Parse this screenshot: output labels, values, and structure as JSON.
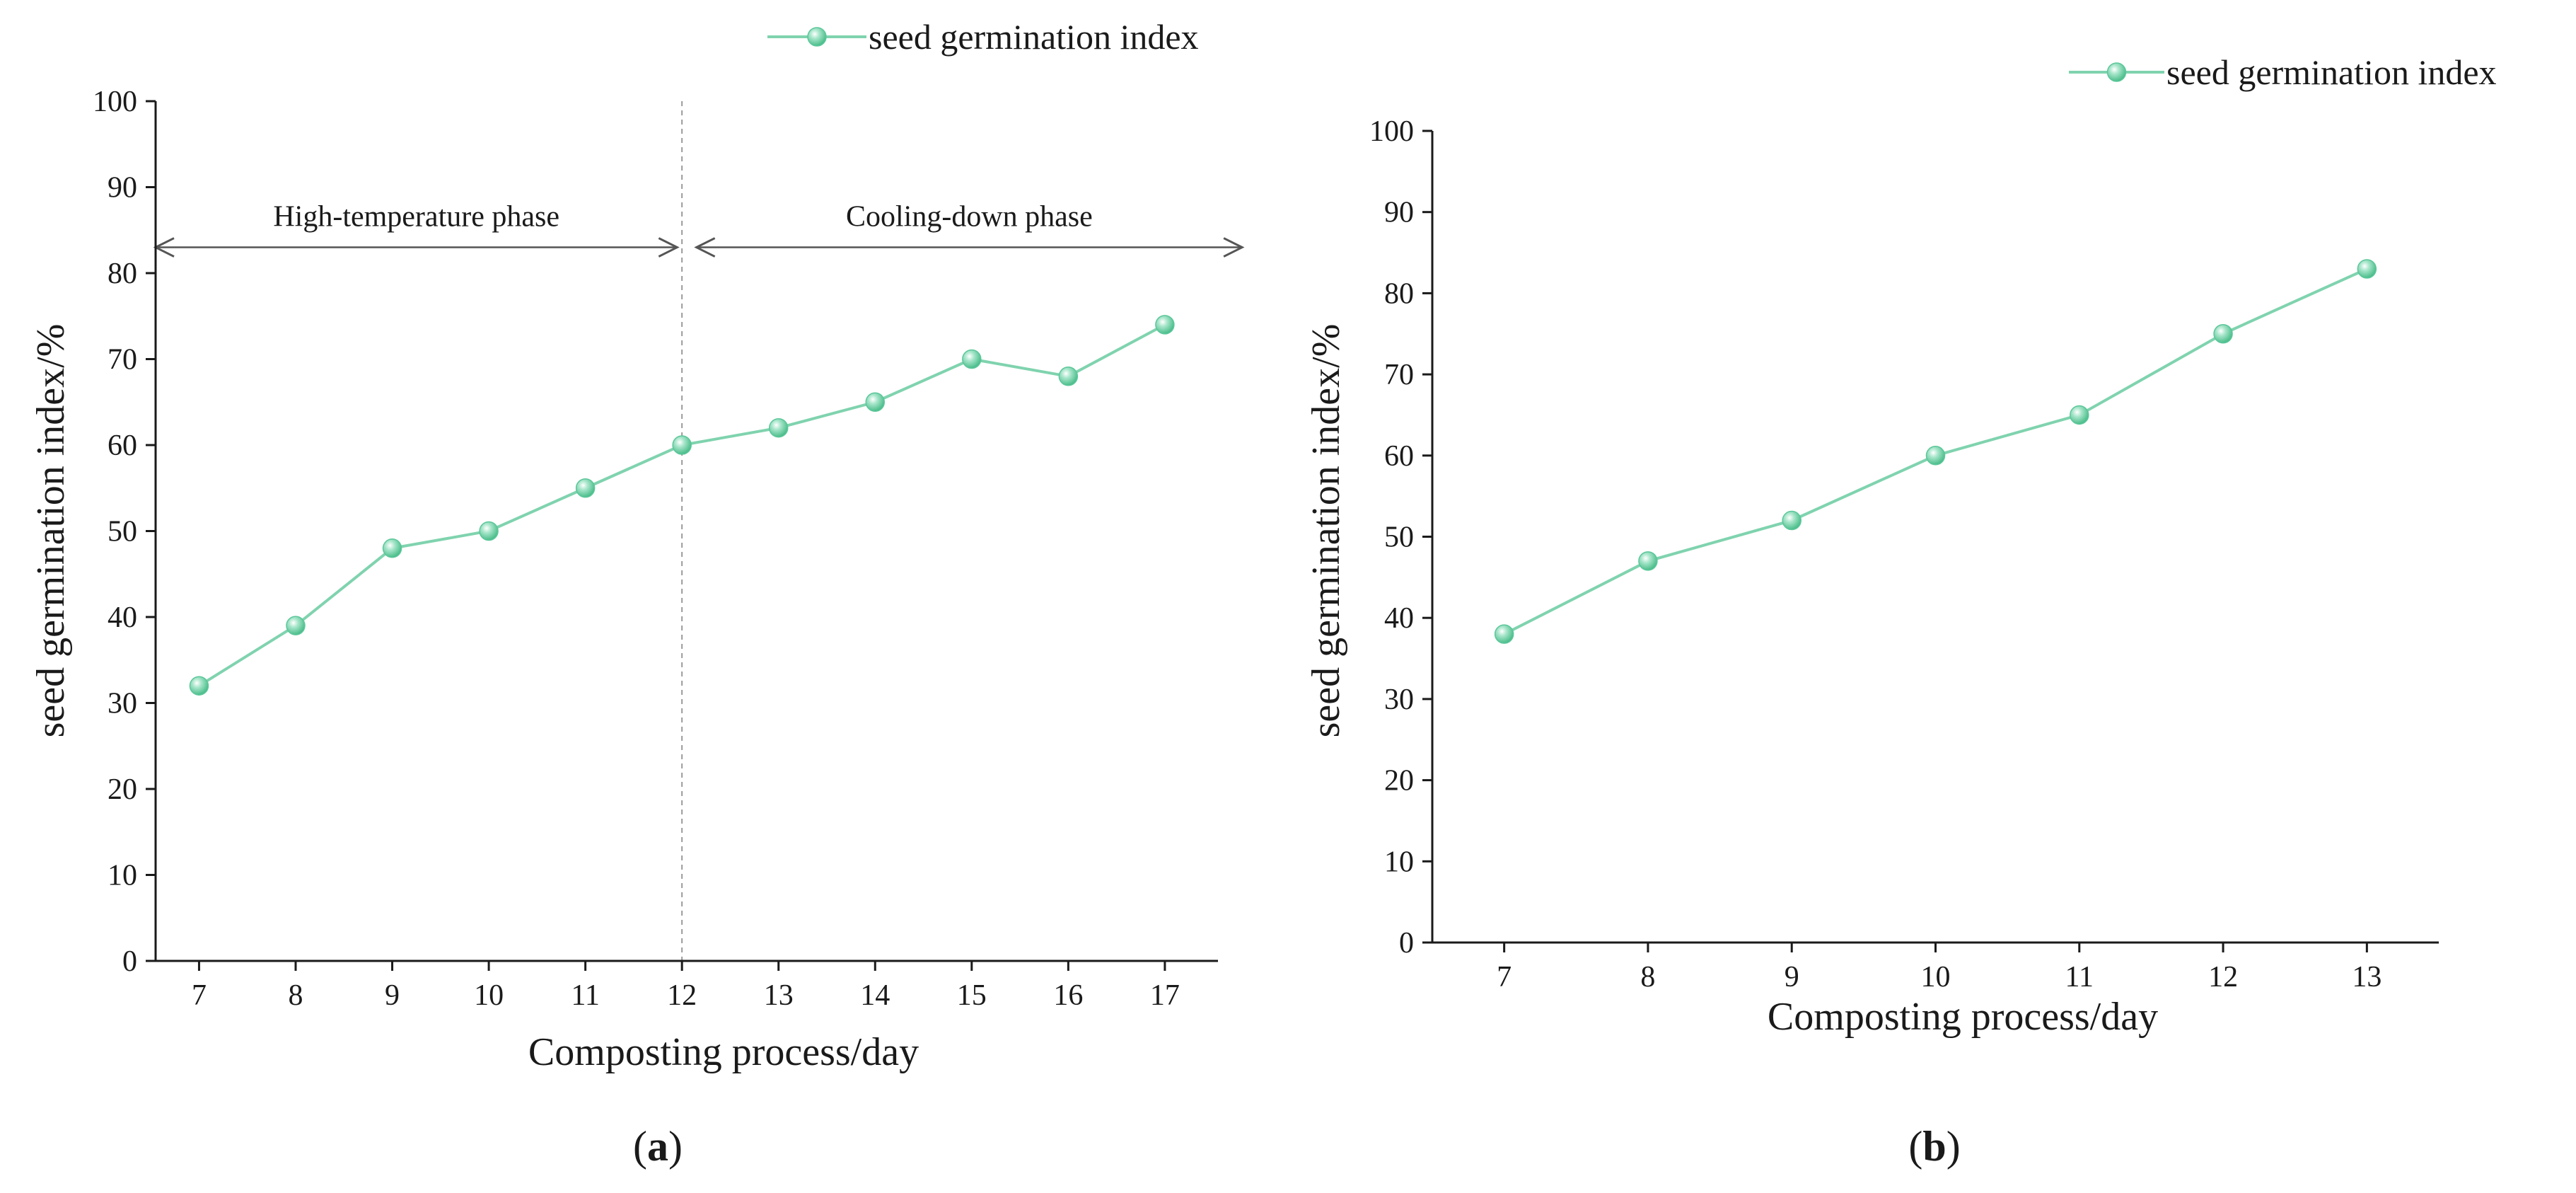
{
  "colors": {
    "series": "#7fd3ae",
    "marker": "#5cc79a",
    "axis": "#1a1a1a",
    "divider": "#9a9a9a",
    "arrow": "#555555"
  },
  "chart_data": [
    {
      "type": "line",
      "panel_label": "(a)",
      "panel_letter": "a",
      "title": "",
      "legend": "seed germination index",
      "xlabel": "Composting process/day",
      "ylabel": "seed germination index/%",
      "x": [
        7,
        8,
        9,
        10,
        11,
        12,
        13,
        14,
        15,
        16,
        17
      ],
      "xticks": [
        "7",
        "8",
        "9",
        "10",
        "11",
        "12",
        "13",
        "14",
        "15",
        "16",
        "17"
      ],
      "xlim": [
        6.55,
        17.55
      ],
      "ylim": [
        0,
        100
      ],
      "yticks": [
        "0",
        "10",
        "20",
        "30",
        "40",
        "50",
        "60",
        "70",
        "80",
        "90",
        "100"
      ],
      "series": [
        {
          "name": "seed germination index",
          "values": [
            32,
            39,
            48,
            50,
            55,
            60,
            62,
            65,
            70,
            68,
            74
          ]
        }
      ],
      "annotations": {
        "divider_x": 12,
        "phases": [
          {
            "label": "High-temperature phase",
            "x_from": 6.55,
            "x_to": 11.95,
            "y": 83
          },
          {
            "label": "Cooling-down phase",
            "x_from": 12.15,
            "x_to": 17.8,
            "y": 83
          }
        ]
      }
    },
    {
      "type": "line",
      "panel_label": "(b)",
      "panel_letter": "b",
      "title": "",
      "legend": "seed germination index",
      "xlabel": "Composting process/day",
      "ylabel": "seed germination index/%",
      "x": [
        7,
        8,
        9,
        10,
        11,
        12,
        13
      ],
      "xticks": [
        "7",
        "8",
        "9",
        "10",
        "11",
        "12",
        "13"
      ],
      "xlim": [
        6.5,
        13.5
      ],
      "ylim": [
        0,
        100
      ],
      "yticks": [
        "0",
        "10",
        "20",
        "30",
        "40",
        "50",
        "60",
        "70",
        "80",
        "90",
        "100"
      ],
      "series": [
        {
          "name": "seed germination index",
          "values": [
            38,
            47,
            52,
            60,
            65,
            75,
            83
          ]
        }
      ]
    }
  ]
}
